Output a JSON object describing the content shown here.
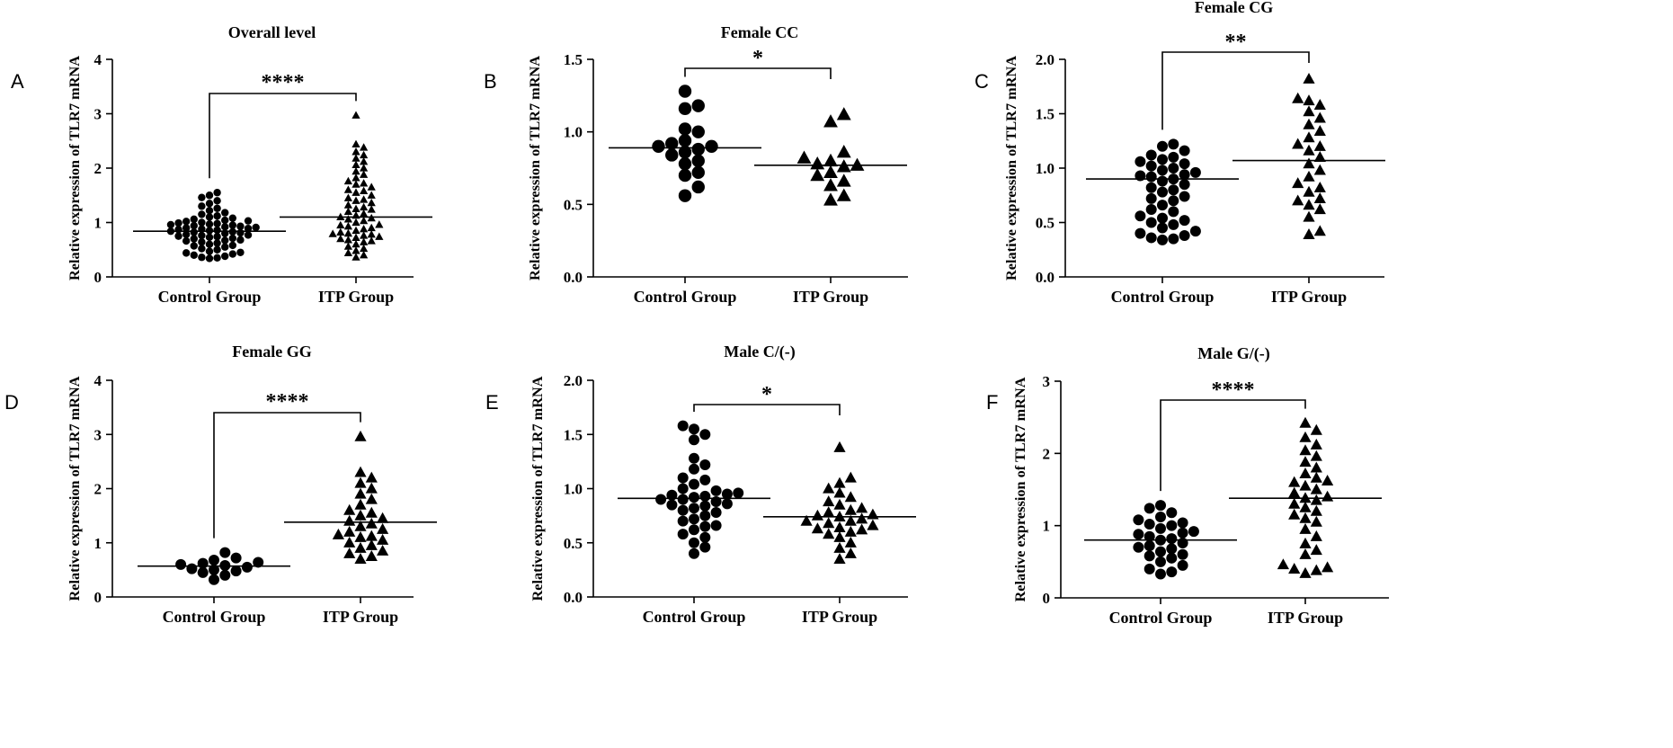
{
  "chart_data": [
    {
      "panel": "A",
      "type": "scatter",
      "title": "Overall level",
      "xlabel": "",
      "ylabel": "Relative expression of TLR7 mRNA",
      "categories": [
        "Control Group",
        "ITP Group"
      ],
      "ylim": [
        0,
        4
      ],
      "yticks": [
        "0",
        "1",
        "2",
        "3",
        "4"
      ],
      "yvals": [
        0,
        1,
        2,
        3,
        4
      ],
      "significance": "****",
      "markers": [
        "circle",
        "triangle"
      ],
      "marker_size": "small",
      "means": [
        0.84,
        1.1
      ],
      "series": [
        {
          "values": [
            0.34,
            0.36,
            0.38,
            0.4,
            0.42,
            0.45,
            0.47,
            0.5,
            0.52,
            0.55,
            0.57,
            0.6,
            0.62,
            0.64,
            0.66,
            0.68,
            0.7,
            0.71,
            0.73,
            0.74,
            0.76,
            0.77,
            0.78,
            0.8,
            0.81,
            0.82,
            0.84,
            0.85,
            0.86,
            0.88,
            0.89,
            0.9,
            0.91,
            0.92,
            0.94,
            0.95,
            0.96,
            0.97,
            0.98,
            1.0,
            1.02,
            1.04,
            1.06,
            1.08,
            1.1,
            1.12,
            1.15,
            1.18,
            1.22,
            1.26,
            1.3,
            1.35,
            1.4,
            1.46,
            1.5,
            1.55,
            0.35,
            0.44,
            0.58,
            0.67,
            0.75,
            0.83,
            0.87,
            0.93,
            0.99,
            1.03
          ]
        },
        {
          "values": [
            0.36,
            0.4,
            0.44,
            0.48,
            0.52,
            0.56,
            0.6,
            0.64,
            0.68,
            0.7,
            0.72,
            0.74,
            0.76,
            0.78,
            0.8,
            0.82,
            0.85,
            0.88,
            0.9,
            0.93,
            0.96,
            1.0,
            1.03,
            1.06,
            1.1,
            1.13,
            1.16,
            1.2,
            1.24,
            1.28,
            1.32,
            1.36,
            1.4,
            1.45,
            1.5,
            1.55,
            1.6,
            1.65,
            1.7,
            1.76,
            1.82,
            1.88,
            1.94,
            2.0,
            2.06,
            2.12,
            2.18,
            2.24,
            2.3,
            2.38,
            2.44,
            2.97,
            0.66,
            0.79,
            0.95,
            1.08,
            1.25,
            1.42,
            1.58,
            1.72
          ]
        }
      ]
    },
    {
      "panel": "B",
      "type": "scatter",
      "title": "Female CC",
      "xlabel": "",
      "ylabel": "Relative expression of TLR7 mRNA",
      "categories": [
        "Control Group",
        "ITP Group"
      ],
      "ylim": [
        0,
        1.5
      ],
      "yticks": [
        "0.0",
        "0.5",
        "1.0",
        "1.5"
      ],
      "yvals": [
        0,
        0.5,
        1.0,
        1.5
      ],
      "significance": "*",
      "markers": [
        "circle",
        "triangle"
      ],
      "marker_size": "large",
      "means": [
        0.89,
        0.77
      ],
      "series": [
        {
          "values": [
            0.56,
            0.62,
            0.7,
            0.72,
            0.78,
            0.8,
            0.84,
            0.86,
            0.88,
            0.9,
            0.9,
            0.92,
            0.94,
            1.0,
            1.02,
            1.16,
            1.18,
            1.28
          ]
        },
        {
          "values": [
            0.53,
            0.56,
            0.63,
            0.66,
            0.7,
            0.72,
            0.76,
            0.77,
            0.78,
            0.8,
            0.82,
            0.86,
            1.07,
            1.12
          ]
        }
      ]
    },
    {
      "panel": "C",
      "type": "scatter",
      "title": "Female CG",
      "xlabel": "",
      "ylabel": "Relative expression of TLR7 mRNA",
      "categories": [
        "Control Group",
        "ITP Group"
      ],
      "ylim": [
        0,
        2.0
      ],
      "yticks": [
        "0.0",
        "0.5",
        "1.0",
        "1.5",
        "2.0"
      ],
      "yvals": [
        0,
        0.5,
        1.0,
        1.5,
        2.0
      ],
      "significance": "**",
      "markers": [
        "circle",
        "triangle"
      ],
      "marker_size": "medium",
      "means": [
        0.9,
        1.07
      ],
      "series": [
        {
          "values": [
            0.34,
            0.35,
            0.36,
            0.38,
            0.4,
            0.42,
            0.48,
            0.5,
            0.52,
            0.54,
            0.56,
            0.62,
            0.66,
            0.7,
            0.74,
            0.78,
            0.82,
            0.85,
            0.88,
            0.9,
            0.92,
            0.93,
            0.94,
            0.96,
            1.0,
            1.02,
            1.04,
            1.06,
            1.08,
            1.12,
            1.16,
            1.2,
            1.22,
            0.45,
            0.6,
            0.72,
            0.8,
            0.98,
            1.1
          ]
        },
        {
          "values": [
            0.39,
            0.42,
            0.55,
            0.62,
            0.66,
            0.72,
            0.78,
            0.82,
            0.86,
            0.92,
            0.98,
            1.04,
            1.1,
            1.16,
            1.22,
            1.28,
            1.34,
            1.4,
            1.46,
            1.52,
            1.58,
            1.62,
            1.64,
            1.82,
            0.7,
            1.2
          ]
        }
      ]
    },
    {
      "panel": "D",
      "type": "scatter",
      "title": "Female GG",
      "xlabel": "",
      "ylabel": "Relative expression of TLR7 mRNA",
      "categories": [
        "Control Group",
        "ITP Group"
      ],
      "ylim": [
        0,
        4
      ],
      "yticks": [
        "0",
        "1",
        "2",
        "3",
        "4"
      ],
      "yvals": [
        0,
        1,
        2,
        3,
        4
      ],
      "significance": "****",
      "markers": [
        "circle",
        "triangle"
      ],
      "marker_size": "medium",
      "means": [
        0.57,
        1.38
      ],
      "series": [
        {
          "values": [
            0.32,
            0.4,
            0.45,
            0.48,
            0.5,
            0.52,
            0.55,
            0.58,
            0.6,
            0.62,
            0.64,
            0.68,
            0.72,
            0.82
          ]
        },
        {
          "values": [
            0.7,
            0.75,
            0.8,
            0.85,
            0.9,
            0.95,
            1.0,
            1.05,
            1.1,
            1.15,
            1.2,
            1.25,
            1.3,
            1.35,
            1.4,
            1.45,
            1.55,
            1.6,
            1.7,
            1.8,
            1.9,
            2.0,
            2.1,
            2.2,
            2.3,
            2.96,
            1.12,
            1.5
          ]
        }
      ]
    },
    {
      "panel": "E",
      "type": "scatter",
      "title": "Male C/(-)",
      "xlabel": "",
      "ylabel": "Relative expression of TLR7 mRNA",
      "categories": [
        "Control Group",
        "ITP Group"
      ],
      "ylim": [
        0,
        2.0
      ],
      "yticks": [
        "0.0",
        "0.5",
        "1.0",
        "1.5",
        "2.0"
      ],
      "yvals": [
        0,
        0.5,
        1.0,
        1.5,
        2.0
      ],
      "significance": "*",
      "markers": [
        "circle",
        "triangle"
      ],
      "marker_size": "medium",
      "means": [
        0.91,
        0.74
      ],
      "series": [
        {
          "values": [
            0.4,
            0.46,
            0.5,
            0.55,
            0.58,
            0.62,
            0.66,
            0.7,
            0.72,
            0.75,
            0.78,
            0.8,
            0.82,
            0.84,
            0.86,
            0.88,
            0.9,
            0.9,
            0.92,
            0.93,
            0.94,
            0.95,
            0.96,
            0.98,
            1.0,
            1.04,
            1.1,
            1.18,
            1.22,
            1.28,
            1.45,
            1.5,
            1.55,
            1.58,
            0.65,
            0.85,
            1.08
          ]
        },
        {
          "values": [
            0.35,
            0.4,
            0.45,
            0.5,
            0.55,
            0.58,
            0.6,
            0.62,
            0.64,
            0.66,
            0.68,
            0.7,
            0.72,
            0.74,
            0.75,
            0.76,
            0.78,
            0.8,
            0.82,
            0.85,
            0.88,
            0.92,
            0.96,
            1.0,
            1.05,
            1.1,
            1.38,
            0.7,
            0.63
          ]
        }
      ]
    },
    {
      "panel": "F",
      "type": "scatter",
      "title": "Male G/(-)",
      "xlabel": "",
      "ylabel": "Relative expression of TLR7 mRNA",
      "categories": [
        "Control Group",
        "ITP Group"
      ],
      "ylim": [
        0,
        3
      ],
      "yticks": [
        "0",
        "1",
        "2",
        "3"
      ],
      "yvals": [
        0,
        1,
        2,
        3
      ],
      "significance": "****",
      "markers": [
        "circle",
        "triangle"
      ],
      "marker_size": "medium",
      "means": [
        0.8,
        1.38
      ],
      "series": [
        {
          "values": [
            0.33,
            0.36,
            0.4,
            0.45,
            0.5,
            0.55,
            0.6,
            0.64,
            0.68,
            0.72,
            0.76,
            0.8,
            0.82,
            0.85,
            0.88,
            0.92,
            0.96,
            1.0,
            1.04,
            1.08,
            1.12,
            1.18,
            1.24,
            1.28,
            0.58,
            0.7,
            0.9,
            1.02
          ]
        },
        {
          "values": [
            0.34,
            0.38,
            0.42,
            0.46,
            0.6,
            0.66,
            0.75,
            0.85,
            0.95,
            1.05,
            1.15,
            1.2,
            1.25,
            1.3,
            1.35,
            1.4,
            1.45,
            1.5,
            1.55,
            1.6,
            1.66,
            1.72,
            1.8,
            1.88,
            1.96,
            2.04,
            2.12,
            2.22,
            2.32,
            2.42,
            1.1,
            1.38,
            1.62,
            0.4
          ]
        }
      ]
    }
  ]
}
